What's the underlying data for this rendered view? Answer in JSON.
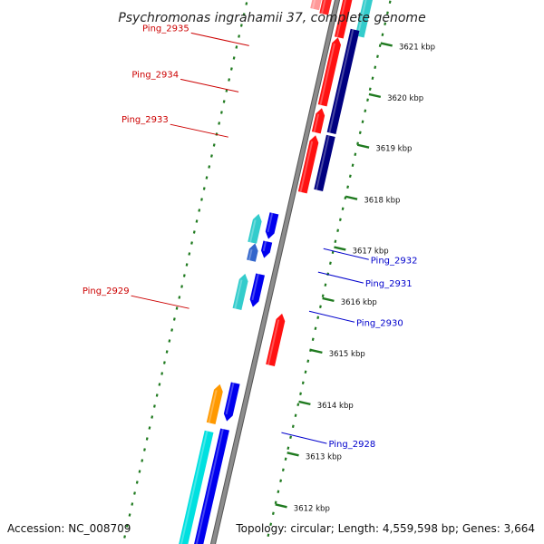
{
  "title": "Psychromonas ingrahamii 37, complete genome",
  "footer": {
    "accession": "Accession: NC_008709",
    "summary": "Topology: circular; Length: 4,559,598 bp; Genes: 3,664"
  },
  "colors": {
    "backbone": "#8c8c8c",
    "backbone_edge": "#555555",
    "ticks": "#1f7a1f",
    "left_label": "#cc0000",
    "right_label": "#0000cc"
  },
  "scale_ticks": [
    {
      "label": "3621 kbp",
      "t": 0.058
    },
    {
      "label": "3620 kbp",
      "t": 0.152
    },
    {
      "label": "3619 kbp",
      "t": 0.245
    },
    {
      "label": "3618 kbp",
      "t": 0.34
    },
    {
      "label": "3617 kbp",
      "t": 0.433
    },
    {
      "label": "3616 kbp",
      "t": 0.527
    },
    {
      "label": "3615 kbp",
      "t": 0.622
    },
    {
      "label": "3614 kbp",
      "t": 0.717
    },
    {
      "label": "3613 kbp",
      "t": 0.811
    },
    {
      "label": "3612 kbp",
      "t": 0.906
    }
  ],
  "features": [
    {
      "lane": -3,
      "t0": -0.05,
      "t1": 0.055,
      "color": "#33cccc",
      "dir": "none"
    },
    {
      "lane": -1,
      "t0": -0.05,
      "t1": 0.065,
      "color": "#ff1111",
      "dir": "up"
    },
    {
      "lane": 1,
      "t0": -0.05,
      "t1": 0.03,
      "color": "#ff2222",
      "dir": "none"
    },
    {
      "lane": 2,
      "t0": -0.05,
      "t1": 0.025,
      "color": "#ff9999",
      "dir": "none"
    },
    {
      "lane": -2.4,
      "t0": 0.045,
      "t1": 0.235,
      "color": "#000080",
      "dir": "none"
    },
    {
      "lane": -0.9,
      "t0": 0.065,
      "t1": 0.19,
      "color": "#ff1111",
      "dir": "up"
    },
    {
      "lane": -0.9,
      "t0": 0.195,
      "t1": 0.24,
      "color": "#ff1111",
      "dir": "up"
    },
    {
      "lane": -2.4,
      "t0": 0.24,
      "t1": 0.34,
      "color": "#000080",
      "dir": "none"
    },
    {
      "lane": -0.9,
      "t0": 0.245,
      "t1": 0.35,
      "color": "#ff1111",
      "dir": "up"
    },
    {
      "lane": 1.4,
      "t0": 0.398,
      "t1": 0.445,
      "color": "#0000ee",
      "dir": "down"
    },
    {
      "lane": 2.9,
      "t0": 0.405,
      "t1": 0.458,
      "color": "#33cccc",
      "dir": "up"
    },
    {
      "lane": 1.4,
      "t0": 0.45,
      "t1": 0.48,
      "color": "#0000ee",
      "dir": "down"
    },
    {
      "lane": 2.6,
      "t0": 0.458,
      "t1": 0.49,
      "color": "#3366cc",
      "dir": "up"
    },
    {
      "lane": 1.4,
      "t0": 0.51,
      "t1": 0.57,
      "color": "#0000ee",
      "dir": "down"
    },
    {
      "lane": 2.9,
      "t0": 0.515,
      "t1": 0.58,
      "color": "#33cccc",
      "dir": "up"
    },
    {
      "lane": -1.6,
      "t0": 0.57,
      "t1": 0.665,
      "color": "#ff1111",
      "dir": "up"
    },
    {
      "lane": 1.4,
      "t0": 0.71,
      "t1": 0.78,
      "color": "#0000ee",
      "dir": "down"
    },
    {
      "lane": 2.9,
      "t0": 0.718,
      "t1": 0.79,
      "color": "#ff9900",
      "dir": "up"
    },
    {
      "lane": 1.4,
      "t0": 0.795,
      "t1": 1.05,
      "color": "#0000ee",
      "dir": "none"
    },
    {
      "lane": 2.9,
      "t0": 0.805,
      "t1": 1.05,
      "color": "#00e0e0",
      "dir": "none"
    }
  ],
  "left_labels": [
    {
      "text": "Ping_2935",
      "t": 0.115
    },
    {
      "text": "Ping_2934",
      "t": 0.2
    },
    {
      "text": "Ping_2933",
      "t": 0.283
    },
    {
      "text": "Ping_2929",
      "t": 0.598
    }
  ],
  "right_labels": [
    {
      "text": "Ping_2932",
      "t": 0.44
    },
    {
      "text": "Ping_2931",
      "t": 0.483
    },
    {
      "text": "Ping_2930",
      "t": 0.555
    },
    {
      "text": "Ping_2928",
      "t": 0.778
    }
  ]
}
